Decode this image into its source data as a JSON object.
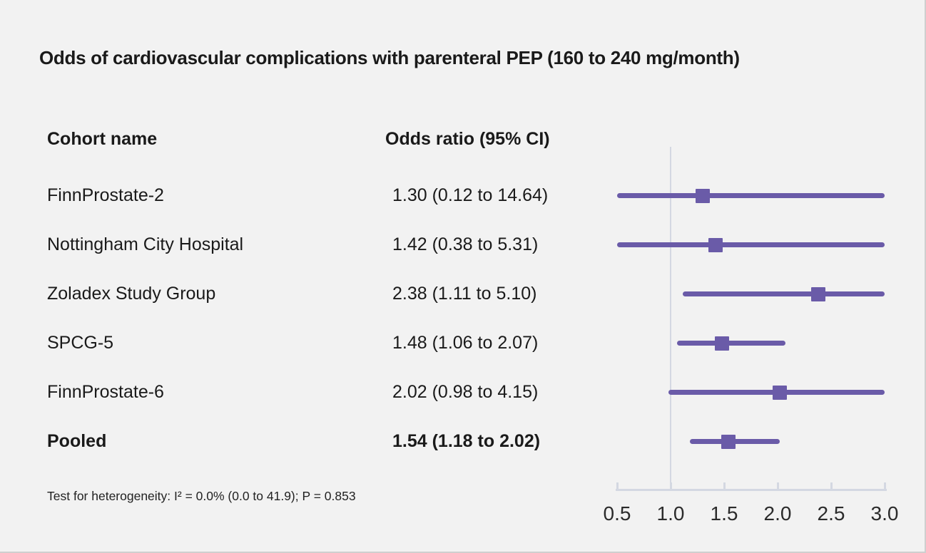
{
  "title": "Odds of cardiovascular complications with parenteral PEP (160 to 240 mg/month)",
  "table": {
    "col1_header": "Cohort name",
    "col2_header": "Odds ratio (95% CI)",
    "rows": [
      {
        "name": "FinnProstate-2",
        "or_text": "1.30 (0.12 to 14.64)",
        "pooled": false
      },
      {
        "name": "Nottingham City Hospital",
        "or_text": "1.42 (0.38 to 5.31)",
        "pooled": false
      },
      {
        "name": "Zoladex Study Group",
        "or_text": "2.38 (1.11 to 5.10)",
        "pooled": false
      },
      {
        "name": "SPCG-5",
        "or_text": "1.48 (1.06 to 2.07)",
        "pooled": false
      },
      {
        "name": "FinnProstate-6",
        "or_text": "2.02 (0.98 to 4.15)",
        "pooled": false
      },
      {
        "name": "Pooled",
        "or_text": "1.54 (1.18 to 2.02)",
        "pooled": true
      }
    ]
  },
  "footnote": "Test for heterogeneity: I² = 0.0% (0.0 to 41.9); P = 0.853",
  "chart_data": {
    "type": "scatter",
    "variant": "forest-plot",
    "title": "Odds of cardiovascular complications with parenteral PEP (160 to 240 mg/month)",
    "series": [
      {
        "label": "FinnProstate-2",
        "odds_ratio": 1.3,
        "ci_low": 0.12,
        "ci_high": 14.64,
        "pooled": false
      },
      {
        "label": "Nottingham City Hospital",
        "odds_ratio": 1.42,
        "ci_low": 0.38,
        "ci_high": 5.31,
        "pooled": false
      },
      {
        "label": "Zoladex Study Group",
        "odds_ratio": 2.38,
        "ci_low": 1.11,
        "ci_high": 5.1,
        "pooled": false
      },
      {
        "label": "SPCG-5",
        "odds_ratio": 1.48,
        "ci_low": 1.06,
        "ci_high": 2.07,
        "pooled": false
      },
      {
        "label": "FinnProstate-6",
        "odds_ratio": 2.02,
        "ci_low": 0.98,
        "ci_high": 4.15,
        "pooled": false
      },
      {
        "label": "Pooled",
        "odds_ratio": 1.54,
        "ci_low": 1.18,
        "ci_high": 2.02,
        "pooled": true
      }
    ],
    "x_ticks": [
      0.5,
      1.0,
      1.5,
      2.0,
      2.5,
      3.0
    ],
    "xlim": [
      0.5,
      3.0
    ],
    "reference_line": 1.0,
    "marker": "square",
    "legend": "none",
    "grid": false
  },
  "colors": {
    "accent_purple": "#6a5ba8",
    "axis_gray": "#d4d8e2",
    "background": "#f2f2f2",
    "text": "#1a1a1a"
  }
}
